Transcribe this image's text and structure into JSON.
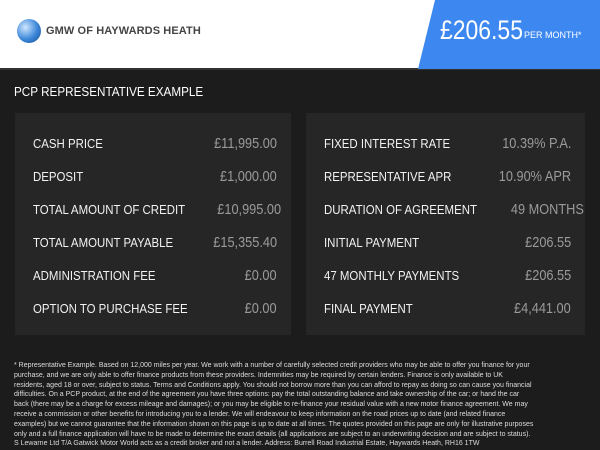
{
  "header": {
    "brand": "GMW OF HAYWARDS HEATH",
    "price": "£206.55",
    "per_month": "PER MONTH*",
    "accent": "#3d88f0"
  },
  "section_title": "PCP REPRESENTATIVE EXAMPLE",
  "left": [
    {
      "label": "CASH PRICE",
      "value": "£11,995.00"
    },
    {
      "label": "DEPOSIT",
      "value": "£1,000.00"
    },
    {
      "label": "TOTAL AMOUNT OF CREDIT",
      "value": "£10,995.00"
    },
    {
      "label": "TOTAL AMOUNT PAYABLE",
      "value": "£15,355.40"
    },
    {
      "label": "ADMINISTRATION FEE",
      "value": "£0.00"
    },
    {
      "label": "OPTION TO PURCHASE FEE",
      "value": "£0.00"
    }
  ],
  "right": [
    {
      "label": "FIXED INTEREST RATE",
      "value": "10.39% P.A."
    },
    {
      "label": "REPRESENTATIVE APR",
      "value": "10.90% APR"
    },
    {
      "label": "DURATION OF AGREEMENT",
      "value": "49 MONTHS"
    },
    {
      "label": "INITIAL PAYMENT",
      "value": "£206.55"
    },
    {
      "label": "47 MONTHLY PAYMENTS",
      "value": "£206.55"
    },
    {
      "label": "FINAL PAYMENT",
      "value": "£4,441.00"
    }
  ],
  "disclaimer": "* Representative Example. Based on 12,000 miles per year. We work with a number of carefully selected credit providers who may be able to offer you finance for your purchase, and we are only able to offer finance products from these providers. Indemnities may be required by certain lenders. Finance is only available to UK residents, aged 18 or over, subject to status. Terms and Conditions apply. You should not borrow more than you can afford to repay as doing so can cause you financial difficulties. On a PCP product, at the end of the agreement you have three options: pay the total outstanding balance and take ownership of the car; or hand the car back (there may be a charge for excess mileage and damages); or you may be eligible to re-finance your residual value with a new motor finance agreement. We may receive a commission or other benefits for introducing you to a lender. We will endeavour to keep information on the road prices up to date (and related finance examples) but we cannot guarantee that the information shown on this page is up to date at all times. The quotes provided on this page are only for illustrative purposes only and a full finance application will have to be made to determine the exact details (all applications are subject to an underwriting decision and are subject to status). S Lewarne Ltd T/A Gatwick Motor World acts as a credit broker and not a lender. Address: Burrell Road Industrial Estate, Haywards Heath, RH16 1TW"
}
